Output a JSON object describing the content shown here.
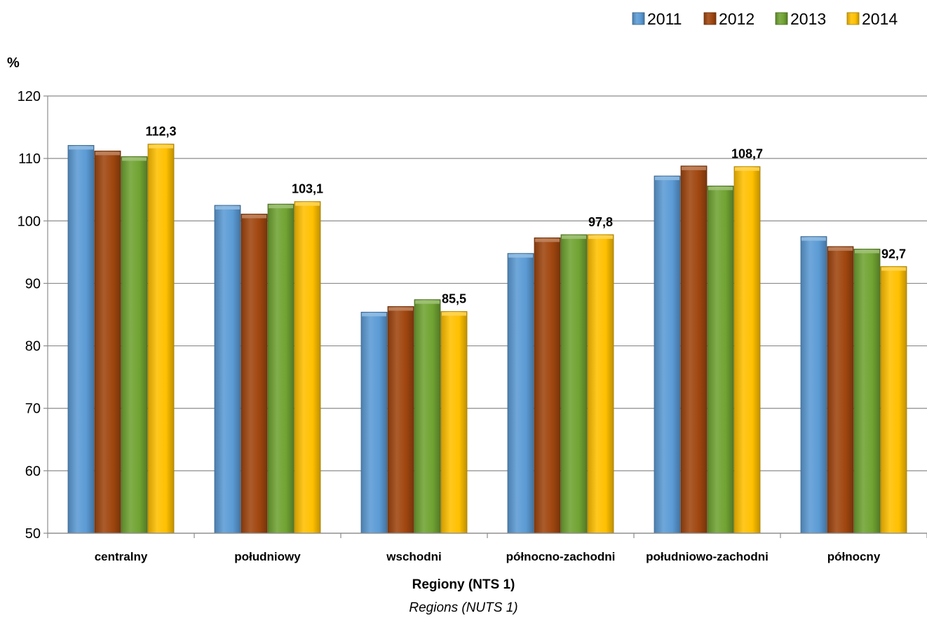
{
  "chart_data": {
    "type": "bar",
    "ylabel": "%",
    "xlabel": "Regiony (NTS 1)",
    "xlabel_secondary": "Regions (NUTS 1)",
    "ylim": [
      50,
      120
    ],
    "yticks": [
      50,
      60,
      70,
      80,
      90,
      100,
      110,
      120
    ],
    "grid": true,
    "legend_position": "top-right",
    "categories": [
      "centralny",
      "południowy",
      "wschodni",
      "północno-zachodni",
      "południowo-zachodni",
      "północny"
    ],
    "series": [
      {
        "name": "2011",
        "color": "#5b9bd5",
        "values": [
          112.1,
          102.5,
          85.4,
          94.8,
          107.2,
          97.5
        ]
      },
      {
        "name": "2012",
        "color": "#a0460f",
        "values": [
          111.2,
          101.1,
          86.3,
          97.3,
          108.8,
          95.9
        ]
      },
      {
        "name": "2013",
        "color": "#70a332",
        "values": [
          110.3,
          102.7,
          87.4,
          97.8,
          105.6,
          95.5
        ]
      },
      {
        "name": "2014",
        "color": "#ffc000",
        "values": [
          112.3,
          103.1,
          85.5,
          97.8,
          108.7,
          92.7
        ]
      }
    ],
    "data_labels": {
      "series": "2014",
      "text": [
        "112,3",
        "103,1",
        "85,5",
        "97,8",
        "108,7",
        "92,7"
      ]
    }
  }
}
